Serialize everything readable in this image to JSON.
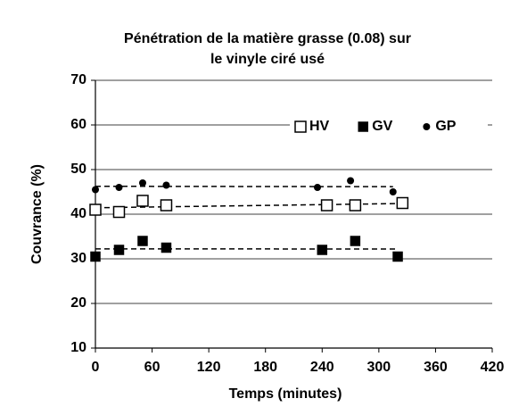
{
  "chart_data": {
    "type": "scatter",
    "title": [
      "Pénétration de la matière grasse (0.08) sur",
      "le vinyle ciré usé"
    ],
    "x_label": "Temps (minutes)",
    "y_label": "Couvrance (%)",
    "xlim": [
      0,
      420
    ],
    "xticks": [
      0,
      60,
      120,
      180,
      240,
      300,
      360,
      420
    ],
    "ylim": [
      10,
      70
    ],
    "yticks": [
      10,
      20,
      30,
      40,
      50,
      60,
      70
    ],
    "grid": true,
    "legend": "upper right",
    "trend_lines": true,
    "series": [
      {
        "name": "HV",
        "color": "#000000",
        "marker": "open-square",
        "x": [
          0,
          25,
          50,
          75,
          245,
          275,
          325
        ],
        "values": [
          41,
          40.5,
          43,
          42,
          42,
          42,
          42.5
        ]
      },
      {
        "name": "GV",
        "color": "#000000",
        "marker": "square",
        "x": [
          0,
          25,
          50,
          75,
          240,
          275,
          320
        ],
        "values": [
          30.5,
          32,
          34,
          32.5,
          32,
          34,
          30.5
        ]
      },
      {
        "name": "GP",
        "color": "#000000",
        "marker": "circle",
        "x": [
          0,
          25,
          50,
          75,
          235,
          270,
          315
        ],
        "values": [
          45.5,
          46,
          47,
          46.5,
          46,
          47.5,
          45
        ]
      }
    ]
  }
}
